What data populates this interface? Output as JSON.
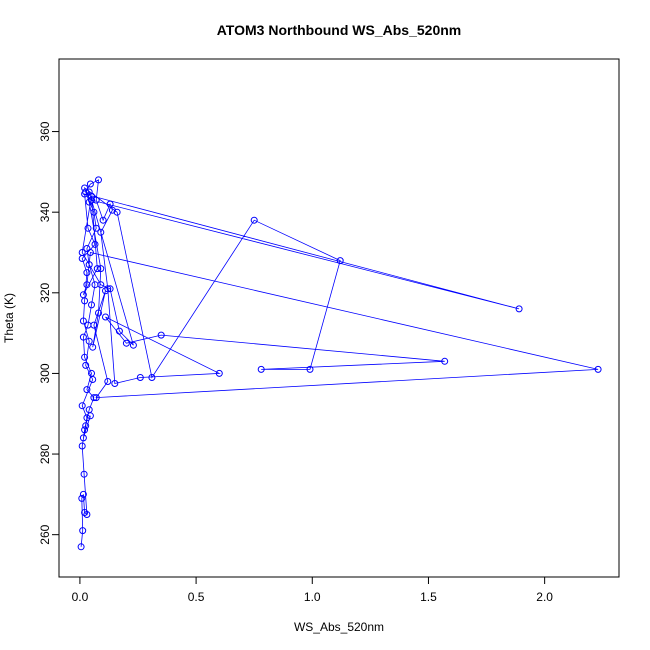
{
  "chart_data": {
    "type": "line",
    "title": "ATOM3 Northbound WS_Abs_520nm",
    "xlabel": "WS_Abs_520nm",
    "ylabel": "Theta (K)",
    "xlim": [
      -0.09,
      2.32
    ],
    "ylim": [
      249.5,
      378
    ],
    "x_ticks": [
      0.0,
      0.5,
      1.0,
      1.5,
      2.0
    ],
    "x_tick_labels": [
      "0.0",
      "0.5",
      "1.0",
      "1.5",
      "2.0"
    ],
    "y_ticks": [
      260,
      280,
      300,
      320,
      340,
      360
    ],
    "y_tick_labels": [
      "260",
      "280",
      "300",
      "320",
      "340",
      "360"
    ],
    "grid": false,
    "marker": "open-circle",
    "color": "#0000ff",
    "x": [
      0.005,
      0.012,
      0.008,
      0.015,
      0.02,
      0.03,
      0.018,
      0.01,
      0.025,
      0.04,
      0.06,
      0.03,
      0.05,
      0.02,
      0.015,
      0.035,
      0.05,
      0.065,
      0.04,
      0.03,
      0.07,
      0.06,
      0.025,
      0.045,
      0.08,
      0.07,
      0.1,
      0.13,
      0.14,
      0.09,
      0.12,
      0.15,
      0.26,
      0.6,
      0.11,
      0.2,
      0.35,
      1.57,
      0.78,
      0.99,
      1.12,
      0.75,
      0.31,
      0.16,
      0.02,
      0.04,
      0.09,
      0.08,
      0.055,
      0.11,
      0.06,
      0.12,
      0.07,
      2.23,
      0.045,
      0.03,
      0.015,
      0.075,
      0.05,
      0.01,
      0.09,
      0.13,
      0.17,
      0.23,
      0.04,
      0.05,
      1.89,
      0.02,
      0.035,
      0.065,
      0.01,
      0.03,
      0.02,
      0.015,
      0.04,
      0.025,
      0.055,
      0.01,
      0.03,
      0.02,
      0.015,
      0.045
    ],
    "y": [
      257.0,
      261.0,
      269.0,
      270.0,
      265.5,
      265.0,
      275.0,
      282.0,
      287.0,
      291.0,
      294.0,
      296.0,
      300.0,
      304.0,
      309.0,
      312.0,
      317.0,
      322.0,
      327.0,
      331.0,
      336.0,
      340.0,
      345.0,
      347.0,
      348.0,
      343.0,
      338.0,
      342.0,
      340.5,
      335.0,
      321.0,
      297.5,
      299.0,
      300.0,
      314.0,
      307.5,
      309.5,
      303.0,
      301.0,
      301.0,
      328.0,
      338.0,
      299.0,
      340.0,
      346.0,
      342.5,
      326.0,
      315.0,
      306.5,
      320.5,
      312.0,
      298.0,
      294.0,
      301.0,
      330.0,
      322.0,
      319.5,
      326.0,
      344.0,
      330.0,
      322.0,
      321.0,
      310.5,
      307.0,
      345.0,
      343.0,
      316.0,
      344.5,
      336.0,
      332.0,
      328.5,
      325.0,
      318.0,
      313.0,
      308.0,
      302.0,
      298.5,
      292.0,
      289.0,
      286.0,
      284.0,
      289.5
    ]
  }
}
